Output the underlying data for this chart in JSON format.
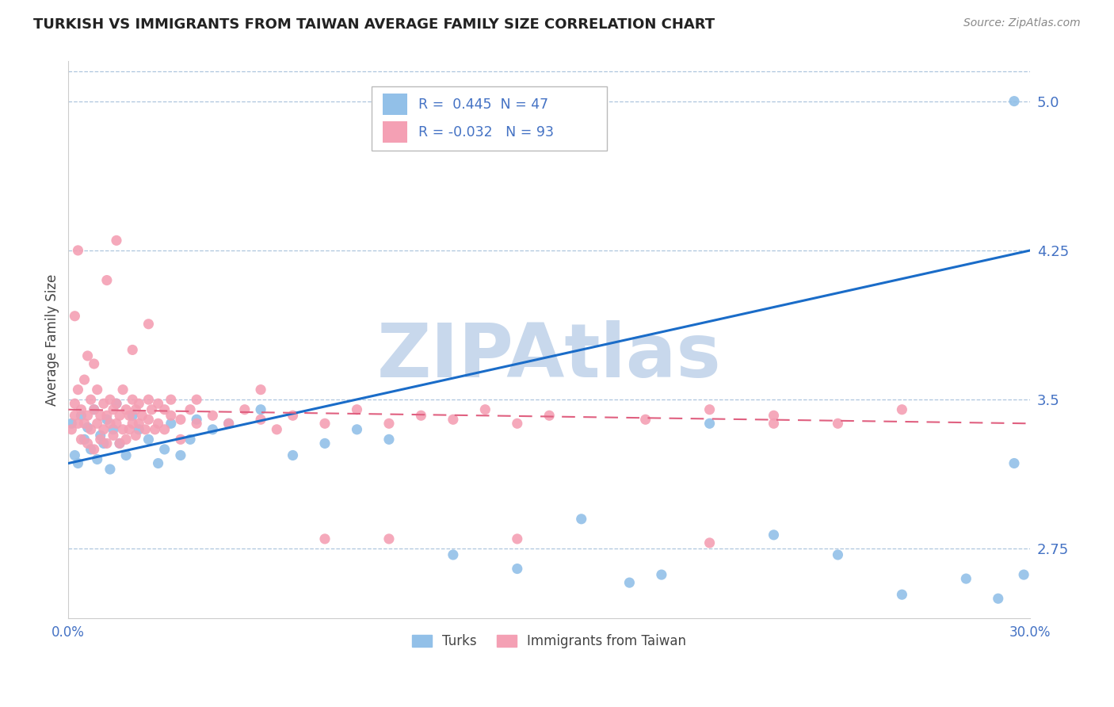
{
  "title": "TURKISH VS IMMIGRANTS FROM TAIWAN AVERAGE FAMILY SIZE CORRELATION CHART",
  "source": "Source: ZipAtlas.com",
  "ylabel": "Average Family Size",
  "xmin": 0.0,
  "xmax": 0.3,
  "ymin": 2.4,
  "ymax": 5.2,
  "yticks": [
    2.75,
    3.5,
    4.25,
    5.0
  ],
  "xticks": [
    0.0,
    0.05,
    0.1,
    0.15,
    0.2,
    0.25,
    0.3
  ],
  "xtick_labels": [
    "0.0%",
    "",
    "",
    "",
    "",
    "",
    "30.0%"
  ],
  "turks_color": "#92c0e8",
  "taiwan_color": "#f4a0b4",
  "turks_R": 0.445,
  "turks_N": 47,
  "taiwan_R": -0.032,
  "taiwan_N": 93,
  "trend_blue": "#1a6cc8",
  "trend_pink": "#e06080",
  "watermark": "ZIPAtlas",
  "watermark_color": "#c8d8ec",
  "title_fontsize": 13,
  "axis_label_color": "#4472c4",
  "background_color": "#ffffff",
  "turks_scatter": [
    [
      0.001,
      3.38
    ],
    [
      0.002,
      3.22
    ],
    [
      0.003,
      3.18
    ],
    [
      0.004,
      3.42
    ],
    [
      0.005,
      3.3
    ],
    [
      0.006,
      3.36
    ],
    [
      0.007,
      3.25
    ],
    [
      0.008,
      3.45
    ],
    [
      0.009,
      3.2
    ],
    [
      0.01,
      3.32
    ],
    [
      0.011,
      3.28
    ],
    [
      0.012,
      3.4
    ],
    [
      0.013,
      3.15
    ],
    [
      0.014,
      3.35
    ],
    [
      0.015,
      3.48
    ],
    [
      0.016,
      3.28
    ],
    [
      0.018,
      3.22
    ],
    [
      0.02,
      3.42
    ],
    [
      0.022,
      3.35
    ],
    [
      0.025,
      3.3
    ],
    [
      0.028,
      3.18
    ],
    [
      0.03,
      3.25
    ],
    [
      0.032,
      3.38
    ],
    [
      0.035,
      3.22
    ],
    [
      0.038,
      3.3
    ],
    [
      0.04,
      3.4
    ],
    [
      0.045,
      3.35
    ],
    [
      0.05,
      3.38
    ],
    [
      0.06,
      3.45
    ],
    [
      0.07,
      3.22
    ],
    [
      0.08,
      3.28
    ],
    [
      0.09,
      3.35
    ],
    [
      0.1,
      3.3
    ],
    [
      0.12,
      2.72
    ],
    [
      0.14,
      2.65
    ],
    [
      0.16,
      2.9
    ],
    [
      0.175,
      2.58
    ],
    [
      0.185,
      2.62
    ],
    [
      0.2,
      3.38
    ],
    [
      0.22,
      2.82
    ],
    [
      0.24,
      2.72
    ],
    [
      0.26,
      2.52
    ],
    [
      0.28,
      2.6
    ],
    [
      0.29,
      2.5
    ],
    [
      0.295,
      3.18
    ],
    [
      0.298,
      2.62
    ],
    [
      0.295,
      5.0
    ]
  ],
  "taiwan_scatter": [
    [
      0.001,
      3.35
    ],
    [
      0.002,
      3.48
    ],
    [
      0.002,
      3.42
    ],
    [
      0.003,
      3.38
    ],
    [
      0.003,
      3.55
    ],
    [
      0.004,
      3.3
    ],
    [
      0.004,
      3.45
    ],
    [
      0.005,
      3.6
    ],
    [
      0.005,
      3.38
    ],
    [
      0.006,
      3.42
    ],
    [
      0.006,
      3.28
    ],
    [
      0.007,
      3.5
    ],
    [
      0.007,
      3.35
    ],
    [
      0.008,
      3.45
    ],
    [
      0.008,
      3.25
    ],
    [
      0.009,
      3.38
    ],
    [
      0.009,
      3.55
    ],
    [
      0.01,
      3.42
    ],
    [
      0.01,
      3.3
    ],
    [
      0.011,
      3.48
    ],
    [
      0.011,
      3.35
    ],
    [
      0.012,
      3.42
    ],
    [
      0.012,
      3.28
    ],
    [
      0.013,
      3.5
    ],
    [
      0.013,
      3.38
    ],
    [
      0.014,
      3.45
    ],
    [
      0.014,
      3.32
    ],
    [
      0.015,
      3.48
    ],
    [
      0.015,
      3.38
    ],
    [
      0.016,
      3.42
    ],
    [
      0.016,
      3.28
    ],
    [
      0.017,
      3.55
    ],
    [
      0.017,
      3.35
    ],
    [
      0.018,
      3.45
    ],
    [
      0.018,
      3.3
    ],
    [
      0.019,
      3.42
    ],
    [
      0.019,
      3.35
    ],
    [
      0.02,
      3.5
    ],
    [
      0.02,
      3.38
    ],
    [
      0.021,
      3.45
    ],
    [
      0.021,
      3.32
    ],
    [
      0.022,
      3.48
    ],
    [
      0.022,
      3.38
    ],
    [
      0.023,
      3.42
    ],
    [
      0.024,
      3.35
    ],
    [
      0.025,
      3.5
    ],
    [
      0.025,
      3.4
    ],
    [
      0.026,
      3.45
    ],
    [
      0.027,
      3.35
    ],
    [
      0.028,
      3.48
    ],
    [
      0.028,
      3.38
    ],
    [
      0.03,
      3.45
    ],
    [
      0.03,
      3.35
    ],
    [
      0.032,
      3.42
    ],
    [
      0.032,
      3.5
    ],
    [
      0.035,
      3.4
    ],
    [
      0.035,
      3.3
    ],
    [
      0.038,
      3.45
    ],
    [
      0.04,
      3.38
    ],
    [
      0.04,
      3.5
    ],
    [
      0.045,
      3.42
    ],
    [
      0.05,
      3.38
    ],
    [
      0.055,
      3.45
    ],
    [
      0.06,
      3.4
    ],
    [
      0.065,
      3.35
    ],
    [
      0.07,
      3.42
    ],
    [
      0.08,
      3.38
    ],
    [
      0.09,
      3.45
    ],
    [
      0.1,
      3.38
    ],
    [
      0.11,
      3.42
    ],
    [
      0.12,
      3.4
    ],
    [
      0.13,
      3.45
    ],
    [
      0.14,
      3.38
    ],
    [
      0.15,
      3.42
    ],
    [
      0.18,
      3.4
    ],
    [
      0.2,
      3.45
    ],
    [
      0.22,
      3.38
    ],
    [
      0.003,
      4.25
    ],
    [
      0.012,
      4.1
    ],
    [
      0.025,
      3.88
    ],
    [
      0.015,
      4.3
    ],
    [
      0.02,
      3.75
    ],
    [
      0.008,
      3.68
    ],
    [
      0.06,
      3.55
    ],
    [
      0.08,
      2.8
    ],
    [
      0.1,
      2.8
    ],
    [
      0.14,
      2.8
    ],
    [
      0.2,
      2.78
    ],
    [
      0.22,
      3.42
    ],
    [
      0.24,
      3.38
    ],
    [
      0.26,
      3.45
    ],
    [
      0.002,
      3.92
    ],
    [
      0.006,
      3.72
    ]
  ]
}
